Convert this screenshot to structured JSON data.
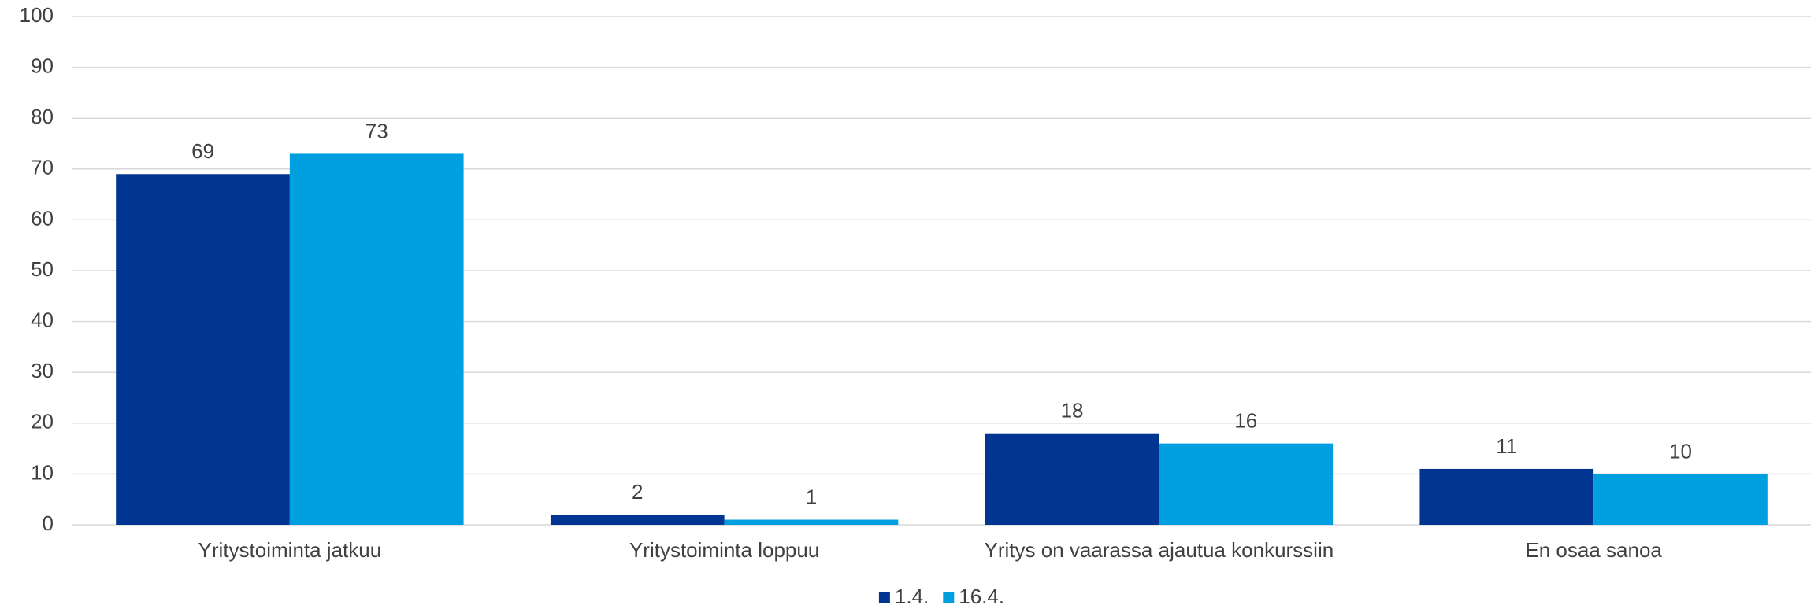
{
  "chart_data": {
    "type": "bar",
    "categories": [
      "Yritystoiminta jatkuu",
      "Yritystoiminta loppuu",
      "Yritys on vaarassa ajautua konkurssiin",
      "En osaa sanoa"
    ],
    "series": [
      {
        "name": "1.4.",
        "color": "#003591",
        "values": [
          69,
          2,
          18,
          11
        ]
      },
      {
        "name": "16.4.",
        "color": "#00A0E0",
        "values": [
          73,
          1,
          16,
          10
        ]
      }
    ],
    "ylim": [
      0,
      100
    ],
    "yticks": [
      0,
      10,
      20,
      30,
      40,
      50,
      60,
      70,
      80,
      90,
      100
    ],
    "grid": true,
    "legend": "bottom"
  }
}
